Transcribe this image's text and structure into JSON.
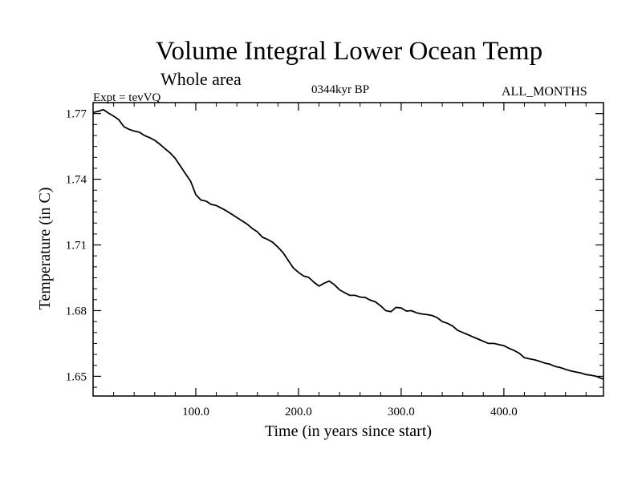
{
  "header": {
    "title": "Volume Integral Lower Ocean Temp",
    "subtitle": "Whole area",
    "expt_label": "Expt = tevVQ",
    "center_label": "0344kyr BP",
    "right_label": "ALL_MONTHS"
  },
  "chart_data": {
    "type": "line",
    "title": "Volume Integral Lower Ocean Temp",
    "xlabel": "Time (in years since start)",
    "ylabel": "Temperature (in C)",
    "xlim": [
      0,
      497
    ],
    "ylim": [
      1.641,
      1.775
    ],
    "x_ticks": [
      100,
      200,
      300,
      400
    ],
    "x_tick_labels": [
      "100.0",
      "200.0",
      "300.0",
      "400.0"
    ],
    "y_ticks": [
      1.65,
      1.68,
      1.71,
      1.74,
      1.77
    ],
    "y_tick_labels": [
      "1.65",
      "1.68",
      "1.71",
      "1.74",
      "1.77"
    ],
    "grid": false,
    "series": [
      {
        "color": "#000000",
        "x": [
          0,
          5,
          10,
          15,
          20,
          25,
          30,
          35,
          40,
          45,
          50,
          55,
          60,
          65,
          70,
          75,
          80,
          85,
          90,
          95,
          100,
          105,
          110,
          115,
          120,
          125,
          130,
          135,
          140,
          145,
          150,
          155,
          160,
          165,
          170,
          175,
          180,
          185,
          190,
          195,
          200,
          205,
          210,
          215,
          220,
          225,
          230,
          235,
          240,
          245,
          250,
          255,
          260,
          265,
          270,
          275,
          280,
          285,
          290,
          295,
          300,
          305,
          310,
          315,
          320,
          325,
          330,
          335,
          340,
          345,
          350,
          355,
          360,
          365,
          370,
          375,
          380,
          385,
          390,
          395,
          400,
          405,
          410,
          415,
          420,
          425,
          430,
          435,
          440,
          445,
          450,
          455,
          460,
          465,
          470,
          475,
          480,
          485,
          490,
          495,
          497
        ],
        "values": [
          1.7705,
          1.771,
          1.7718,
          1.7702,
          1.7688,
          1.7672,
          1.764,
          1.7628,
          1.762,
          1.7615,
          1.76,
          1.759,
          1.7578,
          1.756,
          1.754,
          1.752,
          1.7495,
          1.746,
          1.7425,
          1.739,
          1.733,
          1.7305,
          1.73,
          1.7285,
          1.728,
          1.7268,
          1.7255,
          1.724,
          1.7225,
          1.721,
          1.7195,
          1.7175,
          1.716,
          1.7135,
          1.7125,
          1.7112,
          1.709,
          1.7065,
          1.703,
          1.6995,
          1.6975,
          1.6958,
          1.6952,
          1.693,
          1.6912,
          1.6925,
          1.6935,
          1.6918,
          1.6895,
          1.6882,
          1.687,
          1.687,
          1.6862,
          1.686,
          1.6848,
          1.684,
          1.6822,
          1.68,
          1.6795,
          1.6815,
          1.6812,
          1.6798,
          1.68,
          1.679,
          1.6785,
          1.6782,
          1.6778,
          1.6768,
          1.675,
          1.6742,
          1.673,
          1.671,
          1.67,
          1.669,
          1.668,
          1.667,
          1.666,
          1.665,
          1.665,
          1.6645,
          1.664,
          1.6628,
          1.6618,
          1.6605,
          1.6585,
          1.658,
          1.6575,
          1.6568,
          1.656,
          1.6555,
          1.6545,
          1.654,
          1.6532,
          1.6525,
          1.652,
          1.6515,
          1.6508,
          1.6505,
          1.65,
          1.649,
          1.6488
        ]
      }
    ]
  }
}
